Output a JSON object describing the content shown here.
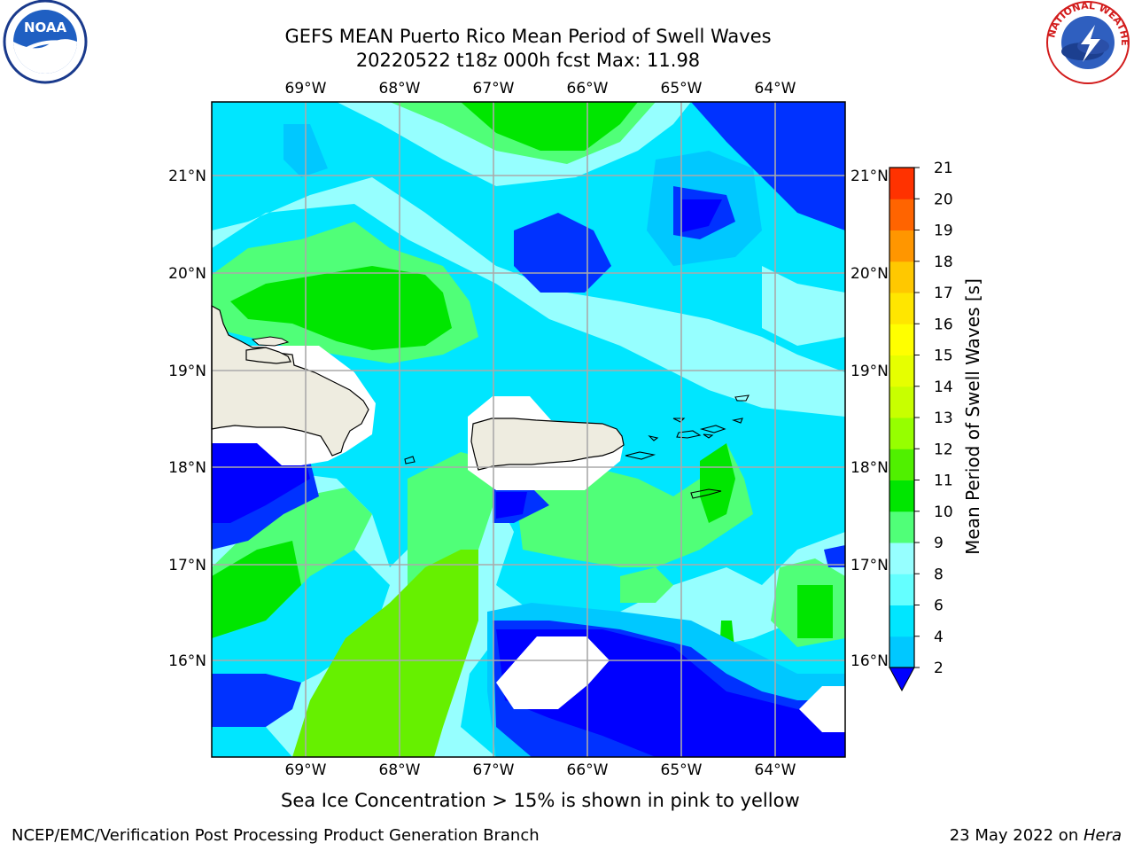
{
  "title": {
    "line1": "GEFS MEAN Puerto Rico Mean Period of Swell Waves",
    "line2": "20220522 t18z 000h fcst   Max: 11.98"
  },
  "logos": {
    "noaa_text": "NOAA",
    "nws_text": "NATIONAL WEATHER SERVICE"
  },
  "map": {
    "lon_labels": [
      "69°W",
      "68°W",
      "67°W",
      "66°W",
      "65°W",
      "64°W"
    ],
    "lat_labels": [
      "21°N",
      "20°N",
      "19°N",
      "18°N",
      "17°N",
      "16°N"
    ]
  },
  "colorbar": {
    "title": "Mean Period of Swell Waves [s]",
    "ticks": [
      "2",
      "4",
      "6",
      "8",
      "9",
      "10",
      "11",
      "12",
      "13",
      "14",
      "15",
      "16",
      "17",
      "18",
      "19",
      "20",
      "21"
    ],
    "colors": [
      "#0032ff",
      "#00c8ff",
      "#00e6ff",
      "#64ffff",
      "#96ffff",
      "#50ff78",
      "#00e600",
      "#50f000",
      "#96ff00",
      "#c8ff00",
      "#e6ff00",
      "#ffff00",
      "#ffe600",
      "#ffc800",
      "#ff9600",
      "#ff6400",
      "#ff3200",
      "#ff0000"
    ],
    "underflow_color": "#0000ff"
  },
  "note": "Sea Ice Concentration > 15% is shown in pink to yellow",
  "footer": {
    "left": "NCEP/EMC/Verification Post Processing Product Generation Branch",
    "right_prefix": "23 May 2022 on ",
    "right_host": "Hera"
  }
}
